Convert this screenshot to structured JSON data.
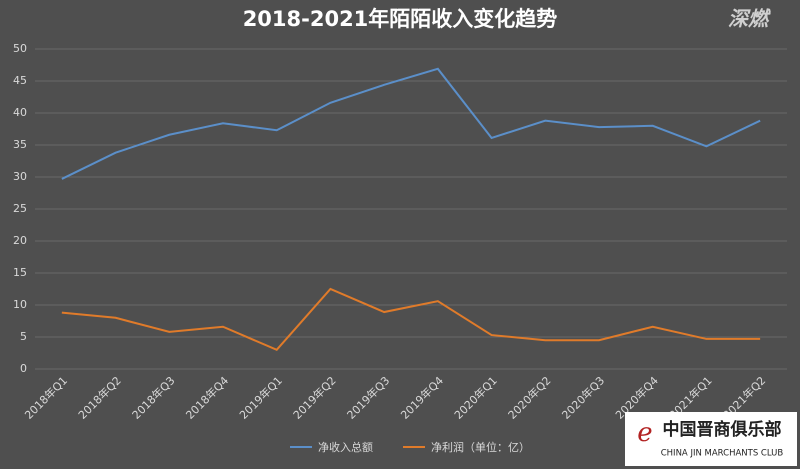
{
  "chart_data": {
    "type": "line",
    "title": "2018-2021年陌陌收入变化趋势",
    "categories": [
      "2018年Q1",
      "2018年Q2",
      "2018年Q3",
      "2018年Q4",
      "2019年Q1",
      "2019年Q2",
      "2019年Q3",
      "2019年Q4",
      "2020年Q1",
      "2020年Q2",
      "2020年Q3",
      "2020年Q4",
      "2021年Q1",
      "2021年Q2"
    ],
    "series": [
      {
        "name": "净收入总额",
        "color": "#5b8fc9",
        "values": [
          29.7,
          33.8,
          36.6,
          38.4,
          37.3,
          41.6,
          44.4,
          46.9,
          36.1,
          38.8,
          37.8,
          38.0,
          34.8,
          38.8
        ]
      },
      {
        "name": "净利润（单位：亿）",
        "color": "#e07b2a",
        "values": [
          8.8,
          8.0,
          5.8,
          6.6,
          3.0,
          12.5,
          8.9,
          10.6,
          5.3,
          4.5,
          4.5,
          6.6,
          4.7,
          4.7
        ]
      }
    ],
    "ylim": [
      0,
      50
    ],
    "yticks": [
      0,
      5,
      10,
      15,
      20,
      25,
      30,
      35,
      40,
      45,
      50
    ],
    "grid": true,
    "legend": "bottom",
    "annotations": [
      "深燃",
      "中国晋商俱乐部",
      "CHINA JIN MARCHANTS CLUB"
    ]
  }
}
